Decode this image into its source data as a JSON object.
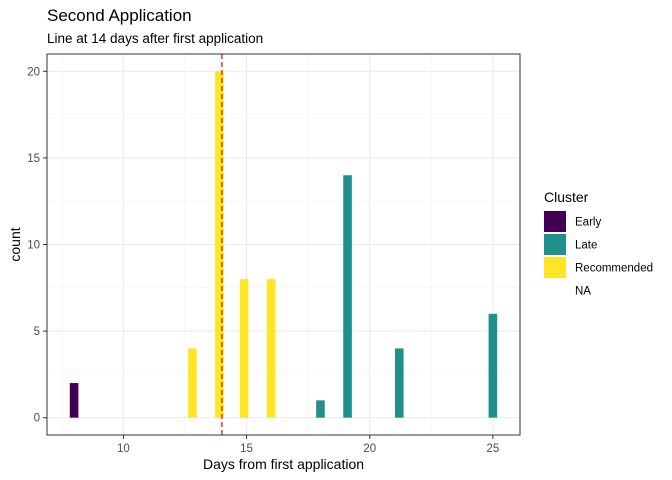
{
  "chart_data": {
    "type": "bar",
    "title": "Second Application",
    "subtitle": "Line at 14 days after first application",
    "xlabel": "Days from first application",
    "ylabel": "count",
    "xlim": [
      6.9,
      26.1
    ],
    "ylim": [
      -1,
      21
    ],
    "xticks": [
      10,
      15,
      20,
      25
    ],
    "yticks": [
      0,
      5,
      10,
      15,
      20
    ],
    "grid": true,
    "bar_width": 0.35,
    "vline": {
      "x": 14,
      "color": "#e31a1c",
      "style": "dashed"
    },
    "legend": {
      "title": "Cluster",
      "placement": "right",
      "entries": [
        {
          "label": "Early",
          "color": "#440154"
        },
        {
          "label": "Late",
          "color": "#21908c"
        },
        {
          "label": "Recommended",
          "color": "#fde725"
        },
        {
          "label": "NA",
          "color": "#ffffff"
        }
      ]
    },
    "bars": [
      {
        "x": 8,
        "value": 2,
        "cluster": "Early"
      },
      {
        "x": 12.8,
        "value": 4,
        "cluster": "Recommended"
      },
      {
        "x": 13.9,
        "value": 20,
        "cluster": "Recommended"
      },
      {
        "x": 14.9,
        "value": 8,
        "cluster": "Recommended"
      },
      {
        "x": 16,
        "value": 8,
        "cluster": "Recommended"
      },
      {
        "x": 18,
        "value": 1,
        "cluster": "Late"
      },
      {
        "x": 19.1,
        "value": 14,
        "cluster": "Late"
      },
      {
        "x": 21.2,
        "value": 4,
        "cluster": "Late"
      },
      {
        "x": 25,
        "value": 6,
        "cluster": "Late"
      }
    ]
  }
}
